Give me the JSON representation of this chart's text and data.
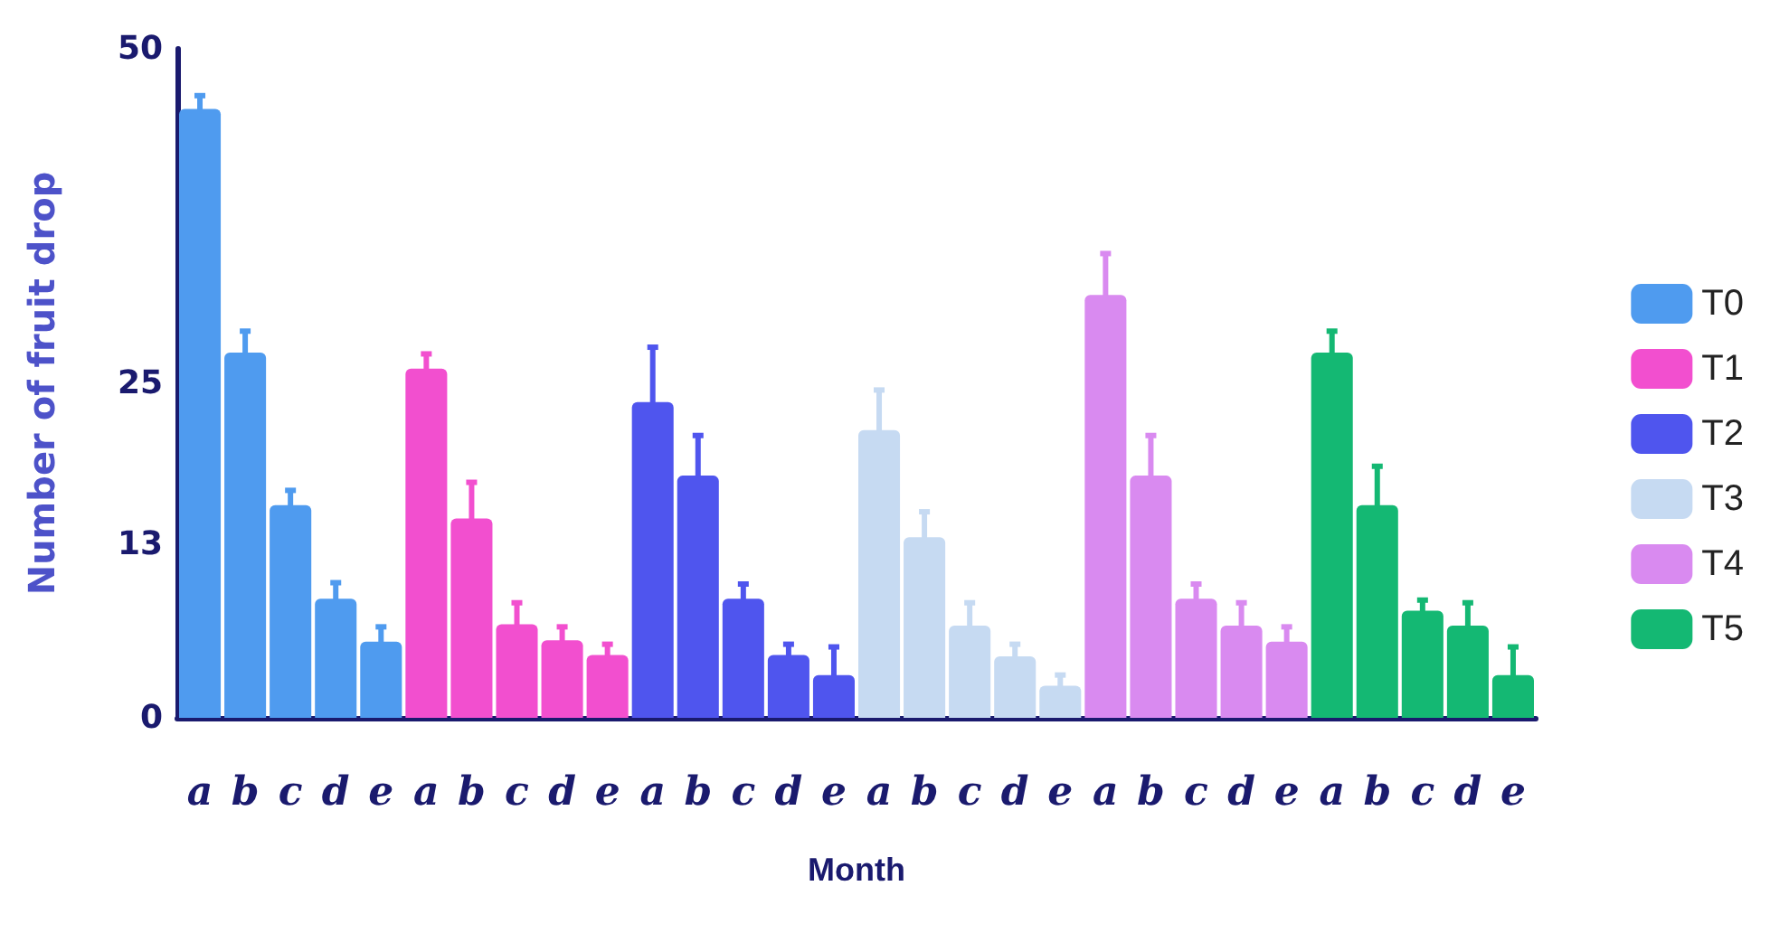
{
  "chart_data": {
    "type": "bar",
    "xlabel": "Month",
    "ylabel": "Number of fruit drop",
    "categories": [
      "a",
      "b",
      "c",
      "d",
      "e",
      "a",
      "b",
      "c",
      "d",
      "e",
      "a",
      "b",
      "c",
      "d",
      "e",
      "a",
      "b",
      "c",
      "d",
      "e",
      "a",
      "b",
      "c",
      "d",
      "e",
      "a",
      "b",
      "c",
      "d",
      "e"
    ],
    "ylim": [
      0,
      50
    ],
    "yticks": [
      0,
      13,
      25,
      50
    ],
    "grid": false,
    "legend": "right",
    "series": [
      {
        "name": "T0",
        "color": "#4f9bef",
        "values": [
          45.5,
          27.3,
          15.9,
          8.9,
          5.7,
          null,
          null,
          null,
          null,
          null,
          null,
          null,
          null,
          null,
          null,
          null,
          null,
          null,
          null,
          null,
          null,
          null,
          null,
          null,
          null,
          null,
          null,
          null,
          null,
          null
        ],
        "errors": [
          1,
          1.6,
          1.1,
          1.2,
          1.1,
          null,
          null,
          null,
          null,
          null,
          null,
          null,
          null,
          null,
          null,
          null,
          null,
          null,
          null,
          null,
          null,
          null,
          null,
          null,
          null,
          null,
          null,
          null,
          null,
          null
        ]
      },
      {
        "name": "T1",
        "color": "#f24fcf",
        "values": [
          null,
          null,
          null,
          null,
          null,
          26.1,
          14.9,
          7.0,
          5.8,
          4.7,
          null,
          null,
          null,
          null,
          null,
          null,
          null,
          null,
          null,
          null,
          null,
          null,
          null,
          null,
          null,
          null,
          null,
          null,
          null,
          null
        ],
        "errors": [
          null,
          null,
          null,
          null,
          null,
          1.1,
          2.7,
          1.6,
          1.0,
          0.8,
          null,
          null,
          null,
          null,
          null,
          null,
          null,
          null,
          null,
          null,
          null,
          null,
          null,
          null,
          null,
          null,
          null,
          null,
          null,
          null
        ]
      },
      {
        "name": "T2",
        "color": "#4f55ee",
        "values": [
          null,
          null,
          null,
          null,
          null,
          null,
          null,
          null,
          null,
          null,
          23.6,
          18.1,
          8.9,
          4.7,
          3.2,
          null,
          null,
          null,
          null,
          null,
          null,
          null,
          null,
          null,
          null,
          null,
          null,
          null,
          null,
          null
        ],
        "errors": [
          null,
          null,
          null,
          null,
          null,
          null,
          null,
          null,
          null,
          null,
          4.1,
          3.0,
          1.1,
          0.8,
          2.1,
          null,
          null,
          null,
          null,
          null,
          null,
          null,
          null,
          null,
          null,
          null,
          null,
          null,
          null,
          null
        ]
      },
      {
        "name": "T3",
        "color": "#c6daf2",
        "values": [
          null,
          null,
          null,
          null,
          null,
          null,
          null,
          null,
          null,
          null,
          null,
          null,
          null,
          null,
          null,
          21.5,
          13.5,
          6.9,
          4.6,
          2.4,
          null,
          null,
          null,
          null,
          null,
          null,
          null,
          null,
          null,
          null
        ],
        "errors": [
          null,
          null,
          null,
          null,
          null,
          null,
          null,
          null,
          null,
          null,
          null,
          null,
          null,
          null,
          null,
          3.0,
          1.9,
          1.7,
          0.9,
          0.8,
          null,
          null,
          null,
          null,
          null,
          null,
          null,
          null,
          null,
          null
        ]
      },
      {
        "name": "T4",
        "color": "#d98af0",
        "values": [
          null,
          null,
          null,
          null,
          null,
          null,
          null,
          null,
          null,
          null,
          null,
          null,
          null,
          null,
          null,
          null,
          null,
          null,
          null,
          null,
          31.6,
          18.1,
          8.9,
          6.9,
          5.7,
          null,
          null,
          null,
          null,
          null
        ],
        "errors": [
          null,
          null,
          null,
          null,
          null,
          null,
          null,
          null,
          null,
          null,
          null,
          null,
          null,
          null,
          null,
          null,
          null,
          null,
          null,
          null,
          3.1,
          3.0,
          1.1,
          1.7,
          1.1,
          null,
          null,
          null,
          null,
          null
        ]
      },
      {
        "name": "T5",
        "color": "#14b873",
        "values": [
          null,
          null,
          null,
          null,
          null,
          null,
          null,
          null,
          null,
          null,
          null,
          null,
          null,
          null,
          null,
          null,
          null,
          null,
          null,
          null,
          null,
          null,
          null,
          null,
          null,
          27.3,
          15.9,
          8.0,
          6.9,
          3.2
        ],
        "errors": [
          null,
          null,
          null,
          null,
          null,
          null,
          null,
          null,
          null,
          null,
          null,
          null,
          null,
          null,
          null,
          null,
          null,
          null,
          null,
          null,
          null,
          null,
          null,
          null,
          null,
          1.6,
          2.9,
          0.8,
          1.7,
          2.1
        ]
      }
    ]
  }
}
